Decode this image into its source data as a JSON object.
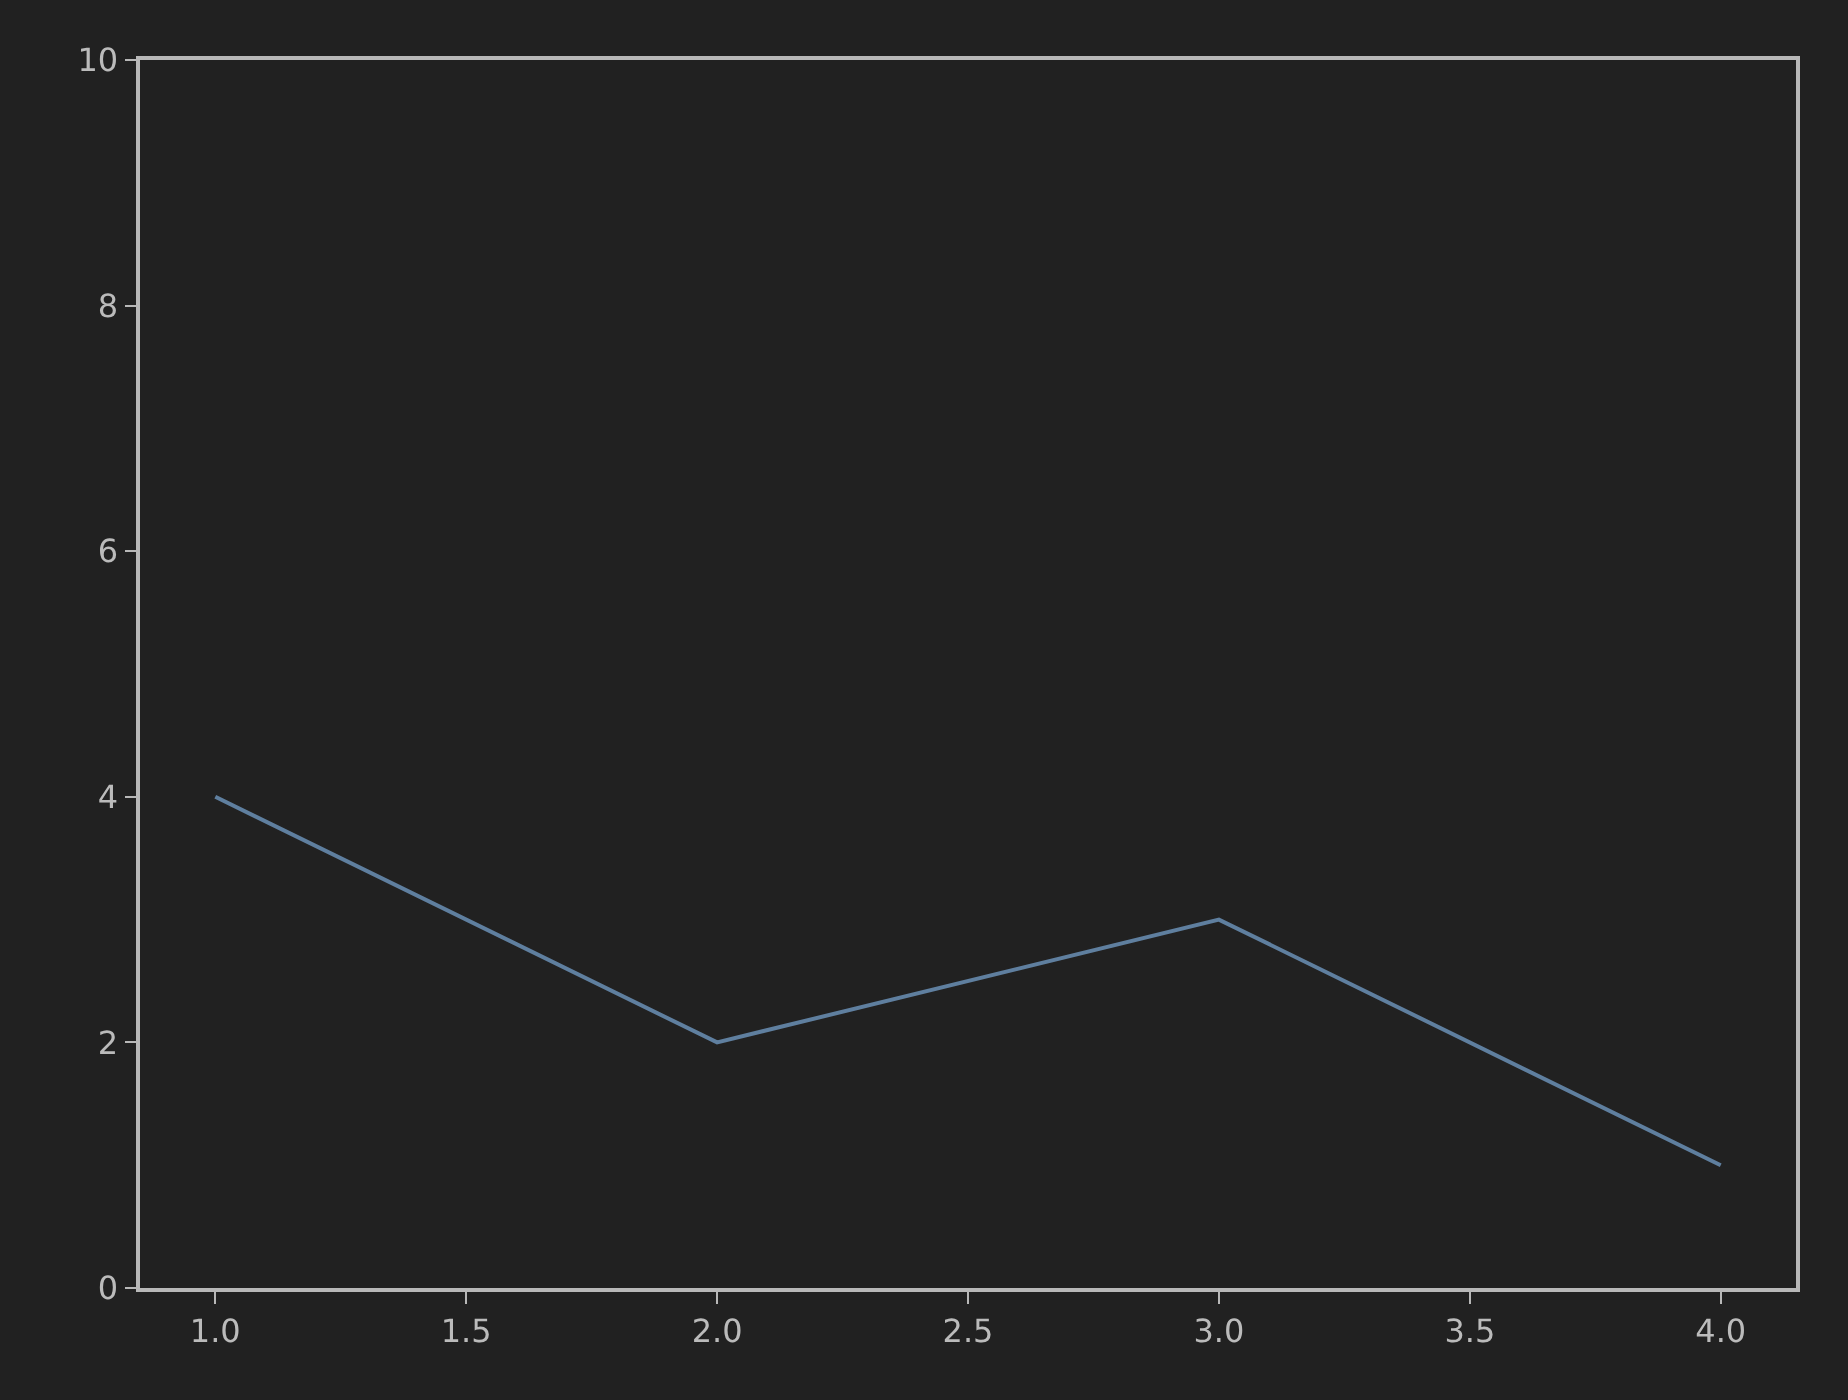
{
  "chart_data": {
    "type": "line",
    "x": [
      1,
      2,
      3,
      4
    ],
    "series": [
      {
        "color": "#5f7f9f",
        "values": [
          4,
          2,
          3,
          1
        ]
      }
    ],
    "xlim": [
      0.85,
      4.15
    ],
    "xticks": [
      {
        "value": 1,
        "label": "1.0"
      },
      {
        "value": 1.5,
        "label": "1.5"
      },
      {
        "value": 2,
        "label": "2.0"
      },
      {
        "value": 2.5,
        "label": "2.5"
      },
      {
        "value": 3,
        "label": "3.0"
      },
      {
        "value": 3.5,
        "label": "3.5"
      },
      {
        "value": 4,
        "label": "4.0"
      }
    ],
    "ylim": [
      0,
      10
    ],
    "yticks": [
      0,
      2,
      4,
      6,
      8,
      10
    ],
    "grid": false,
    "marker": "none",
    "line_style": "solid"
  }
}
